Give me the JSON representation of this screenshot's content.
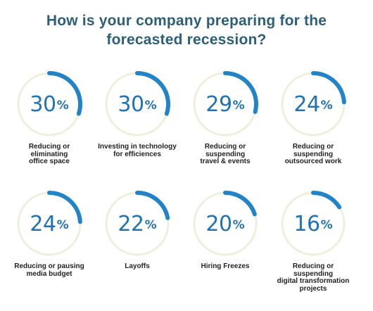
{
  "title_line1": "How is your company preparing for the",
  "title_line2": "forecasted recession?",
  "colors": {
    "title": "#2d5f78",
    "track": "#eef0dc",
    "arc": "#2283c7",
    "value": "#2273b3",
    "label": "#222222"
  },
  "chart_data": {
    "type": "donut-grid",
    "unit": "%",
    "items": [
      {
        "label": "Reducing or\neliminating\noffice space",
        "value": 30
      },
      {
        "label": "Investing in technology\nfor efficiences",
        "value": 30
      },
      {
        "label": "Reducing or\nsuspending\ntravel & events",
        "value": 29
      },
      {
        "label": "Reducing or\nsuspending\noutsourced work",
        "value": 24
      },
      {
        "label": "Reducing or pausing\nmedia budget",
        "value": 24
      },
      {
        "label": "Layoffs",
        "value": 22
      },
      {
        "label": "Hiring Freezes",
        "value": 20
      },
      {
        "label": "Reducing or\nsuspending\ndigital transformation\nprojects",
        "value": 16
      }
    ]
  }
}
